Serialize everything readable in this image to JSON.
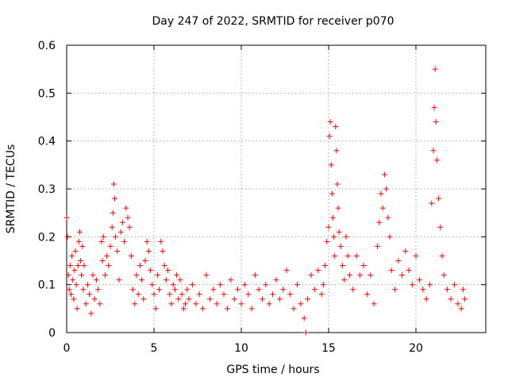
{
  "chart_data": {
    "type": "scatter",
    "title": "Day 247 of 2022, SRMTID for receiver p070",
    "xlabel": "GPS time / hours",
    "ylabel": "SRMTID / TECUs",
    "xlim": [
      0,
      24
    ],
    "ylim": [
      0,
      0.6
    ],
    "xticks": [
      0,
      5,
      10,
      15,
      20
    ],
    "yticks": [
      0,
      0.1,
      0.2,
      0.3,
      0.4,
      0.5,
      0.6
    ],
    "grid": true,
    "marker": "+",
    "color": "#ff0000",
    "series": [
      {
        "name": "SRMTID p070",
        "points": [
          [
            0.0,
            0.24
          ],
          [
            0.05,
            0.2
          ],
          [
            0.1,
            0.12
          ],
          [
            0.15,
            0.09
          ],
          [
            0.2,
            0.14
          ],
          [
            0.25,
            0.08
          ],
          [
            0.3,
            0.16
          ],
          [
            0.35,
            0.11
          ],
          [
            0.4,
            0.07
          ],
          [
            0.45,
            0.13
          ],
          [
            0.5,
            0.17
          ],
          [
            0.55,
            0.1
          ],
          [
            0.6,
            0.05
          ],
          [
            0.65,
            0.14
          ],
          [
            0.7,
            0.19
          ],
          [
            0.75,
            0.21
          ],
          [
            0.8,
            0.15
          ],
          [
            0.85,
            0.12
          ],
          [
            0.9,
            0.18
          ],
          [
            0.95,
            0.09
          ],
          [
            1.0,
            0.14
          ],
          [
            1.1,
            0.06
          ],
          [
            1.2,
            0.1
          ],
          [
            1.3,
            0.08
          ],
          [
            1.4,
            0.04
          ],
          [
            1.5,
            0.12
          ],
          [
            1.6,
            0.07
          ],
          [
            1.7,
            0.11
          ],
          [
            1.8,
            0.09
          ],
          [
            1.9,
            0.06
          ],
          [
            2.0,
            0.19
          ],
          [
            2.05,
            0.15
          ],
          [
            2.1,
            0.2
          ],
          [
            2.2,
            0.12
          ],
          [
            2.3,
            0.16
          ],
          [
            2.4,
            0.14
          ],
          [
            2.5,
            0.18
          ],
          [
            2.6,
            0.22
          ],
          [
            2.65,
            0.25
          ],
          [
            2.7,
            0.31
          ],
          [
            2.75,
            0.28
          ],
          [
            2.8,
            0.2
          ],
          [
            2.9,
            0.17
          ],
          [
            3.0,
            0.11
          ],
          [
            3.1,
            0.21
          ],
          [
            3.2,
            0.23
          ],
          [
            3.3,
            0.19
          ],
          [
            3.4,
            0.26
          ],
          [
            3.5,
            0.24
          ],
          [
            3.6,
            0.22
          ],
          [
            3.7,
            0.16
          ],
          [
            3.8,
            0.09
          ],
          [
            3.9,
            0.06
          ],
          [
            4.0,
            0.12
          ],
          [
            4.1,
            0.08
          ],
          [
            4.2,
            0.14
          ],
          [
            4.3,
            0.11
          ],
          [
            4.4,
            0.07
          ],
          [
            4.5,
            0.15
          ],
          [
            4.6,
            0.19
          ],
          [
            4.7,
            0.17
          ],
          [
            4.8,
            0.13
          ],
          [
            4.9,
            0.1
          ],
          [
            5.0,
            0.08
          ],
          [
            5.1,
            0.05
          ],
          [
            5.2,
            0.12
          ],
          [
            5.3,
            0.09
          ],
          [
            5.4,
            0.19
          ],
          [
            5.5,
            0.17
          ],
          [
            5.6,
            0.14
          ],
          [
            5.7,
            0.11
          ],
          [
            5.8,
            0.13
          ],
          [
            5.9,
            0.08
          ],
          [
            6.0,
            0.06
          ],
          [
            6.1,
            0.1
          ],
          [
            6.2,
            0.09
          ],
          [
            6.3,
            0.12
          ],
          [
            6.4,
            0.07
          ],
          [
            6.5,
            0.11
          ],
          [
            6.6,
            0.08
          ],
          [
            6.7,
            0.05
          ],
          [
            6.8,
            0.06
          ],
          [
            6.9,
            0.09
          ],
          [
            7.0,
            0.07
          ],
          [
            7.2,
            0.1
          ],
          [
            7.4,
            0.06
          ],
          [
            7.6,
            0.08
          ],
          [
            7.8,
            0.05
          ],
          [
            8.0,
            0.12
          ],
          [
            8.2,
            0.07
          ],
          [
            8.4,
            0.09
          ],
          [
            8.6,
            0.06
          ],
          [
            8.8,
            0.1
          ],
          [
            9.0,
            0.08
          ],
          [
            9.2,
            0.05
          ],
          [
            9.4,
            0.11
          ],
          [
            9.6,
            0.07
          ],
          [
            9.8,
            0.09
          ],
          [
            10.0,
            0.06
          ],
          [
            10.2,
            0.1
          ],
          [
            10.4,
            0.08
          ],
          [
            10.6,
            0.05
          ],
          [
            10.8,
            0.12
          ],
          [
            11.0,
            0.09
          ],
          [
            11.2,
            0.07
          ],
          [
            11.4,
            0.1
          ],
          [
            11.6,
            0.06
          ],
          [
            11.8,
            0.08
          ],
          [
            12.0,
            0.11
          ],
          [
            12.2,
            0.07
          ],
          [
            12.4,
            0.09
          ],
          [
            12.6,
            0.13
          ],
          [
            12.8,
            0.08
          ],
          [
            13.0,
            0.05
          ],
          [
            13.2,
            0.1
          ],
          [
            13.4,
            0.06
          ],
          [
            13.6,
            0.03
          ],
          [
            13.7,
            0.0
          ],
          [
            13.8,
            0.07
          ],
          [
            14.0,
            0.12
          ],
          [
            14.2,
            0.09
          ],
          [
            14.4,
            0.13
          ],
          [
            14.6,
            0.08
          ],
          [
            14.7,
            0.1
          ],
          [
            14.8,
            0.14
          ],
          [
            14.9,
            0.19
          ],
          [
            15.0,
            0.22
          ],
          [
            15.05,
            0.41
          ],
          [
            15.1,
            0.44
          ],
          [
            15.15,
            0.35
          ],
          [
            15.2,
            0.29
          ],
          [
            15.25,
            0.24
          ],
          [
            15.3,
            0.2
          ],
          [
            15.35,
            0.16
          ],
          [
            15.4,
            0.43
          ],
          [
            15.45,
            0.38
          ],
          [
            15.5,
            0.31
          ],
          [
            15.55,
            0.26
          ],
          [
            15.6,
            0.21
          ],
          [
            15.7,
            0.18
          ],
          [
            15.8,
            0.14
          ],
          [
            15.9,
            0.11
          ],
          [
            16.0,
            0.2
          ],
          [
            16.1,
            0.16
          ],
          [
            16.2,
            0.12
          ],
          [
            16.4,
            0.09
          ],
          [
            16.6,
            0.16
          ],
          [
            16.8,
            0.12
          ],
          [
            17.0,
            0.14
          ],
          [
            17.2,
            0.08
          ],
          [
            17.4,
            0.12
          ],
          [
            17.6,
            0.06
          ],
          [
            17.8,
            0.18
          ],
          [
            17.9,
            0.23
          ],
          [
            18.0,
            0.29
          ],
          [
            18.1,
            0.26
          ],
          [
            18.2,
            0.33
          ],
          [
            18.3,
            0.3
          ],
          [
            18.4,
            0.24
          ],
          [
            18.5,
            0.2
          ],
          [
            18.6,
            0.13
          ],
          [
            18.8,
            0.09
          ],
          [
            19.0,
            0.15
          ],
          [
            19.2,
            0.12
          ],
          [
            19.4,
            0.17
          ],
          [
            19.6,
            0.13
          ],
          [
            19.8,
            0.1
          ],
          [
            20.0,
            0.16
          ],
          [
            20.2,
            0.11
          ],
          [
            20.4,
            0.09
          ],
          [
            20.6,
            0.07
          ],
          [
            20.8,
            0.1
          ],
          [
            20.9,
            0.27
          ],
          [
            21.0,
            0.38
          ],
          [
            21.05,
            0.47
          ],
          [
            21.1,
            0.55
          ],
          [
            21.15,
            0.44
          ],
          [
            21.2,
            0.36
          ],
          [
            21.3,
            0.28
          ],
          [
            21.4,
            0.22
          ],
          [
            21.5,
            0.16
          ],
          [
            21.6,
            0.12
          ],
          [
            21.8,
            0.09
          ],
          [
            22.0,
            0.07
          ],
          [
            22.2,
            0.1
          ],
          [
            22.4,
            0.06
          ],
          [
            22.6,
            0.05
          ],
          [
            22.7,
            0.09
          ],
          [
            22.8,
            0.07
          ]
        ]
      }
    ]
  }
}
